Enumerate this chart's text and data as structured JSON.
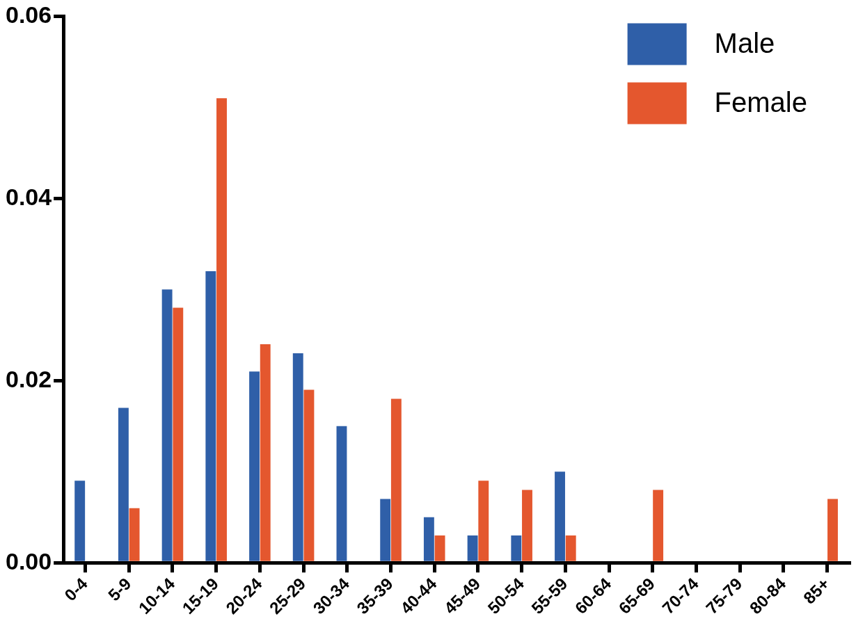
{
  "chart_data": {
    "type": "bar",
    "categories": [
      "0-4",
      "5-9",
      "10-14",
      "15-19",
      "20-24",
      "25-29",
      "30-34",
      "35-39",
      "40-44",
      "45-49",
      "50-54",
      "55-59",
      "60-64",
      "65-69",
      "70-74",
      "75-79",
      "80-84",
      "85+"
    ],
    "series": [
      {
        "name": "Male",
        "color": "#2f5fa8",
        "values": [
          0.009,
          0.017,
          0.03,
          0.032,
          0.021,
          0.023,
          0.015,
          0.007,
          0.005,
          0.003,
          0.003,
          0.01,
          0,
          0,
          0,
          0,
          0,
          0
        ]
      },
      {
        "name": "Female",
        "color": "#e4572e",
        "values": [
          0,
          0.006,
          0.028,
          0.051,
          0.024,
          0.019,
          0,
          0.018,
          0.003,
          0.009,
          0.008,
          0.003,
          0,
          0.008,
          0,
          0,
          0,
          0.007
        ]
      }
    ],
    "ylim": [
      0,
      0.06
    ],
    "yticks": [
      {
        "value": 0,
        "label": "0.00"
      },
      0.02,
      0.04,
      0.06
    ],
    "grid": false,
    "legend": "top right"
  }
}
